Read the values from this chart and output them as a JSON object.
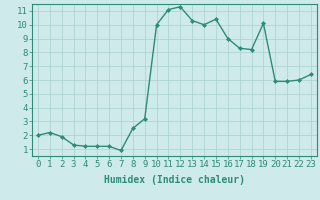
{
  "x": [
    0,
    1,
    2,
    3,
    4,
    5,
    6,
    7,
    8,
    9,
    10,
    11,
    12,
    13,
    14,
    15,
    16,
    17,
    18,
    19,
    20,
    21,
    22,
    23
  ],
  "y": [
    2.0,
    2.2,
    1.9,
    1.3,
    1.2,
    1.2,
    1.2,
    0.9,
    2.5,
    3.2,
    10.0,
    11.1,
    11.3,
    10.3,
    10.0,
    10.4,
    9.0,
    8.3,
    8.2,
    10.1,
    5.9,
    5.9,
    6.0,
    6.4
  ],
  "line_color": "#2e8b7a",
  "marker": "D",
  "marker_size": 2.0,
  "line_width": 1.0,
  "xlabel": "Humidex (Indice chaleur)",
  "xlabel_fontsize": 7,
  "xlim": [
    -0.5,
    23.5
  ],
  "ylim": [
    0.5,
    11.5
  ],
  "yticks": [
    1,
    2,
    3,
    4,
    5,
    6,
    7,
    8,
    9,
    10,
    11
  ],
  "xticks": [
    0,
    1,
    2,
    3,
    4,
    5,
    6,
    7,
    8,
    9,
    10,
    11,
    12,
    13,
    14,
    15,
    16,
    17,
    18,
    19,
    20,
    21,
    22,
    23
  ],
  "bg_color": "#ceeaea",
  "grid_color": "#b0d4d4",
  "tick_label_fontsize": 6.5,
  "tick_color": "#2e8b7a"
}
